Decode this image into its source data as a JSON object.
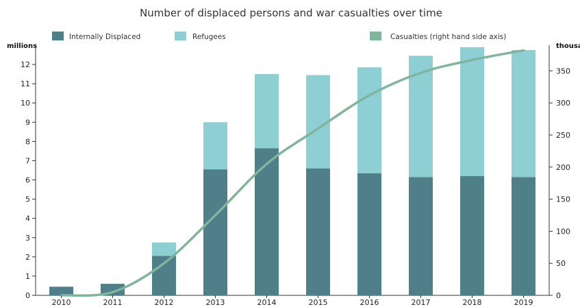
{
  "chart_data": {
    "type": "bar",
    "title": "Number of displaced persons and war casualties over time",
    "left_axis_unit": "millions",
    "right_axis_unit": "thousands",
    "categories": [
      "2010",
      "2011",
      "2012",
      "2013",
      "2014",
      "2015",
      "2016",
      "2017",
      "2018",
      "2019"
    ],
    "series": [
      {
        "name": "Internally Displaced",
        "kind": "bar",
        "stack": "main",
        "axis": "left",
        "color": "#4f7f89",
        "values": [
          0.45,
          0.6,
          2.05,
          6.55,
          7.65,
          6.6,
          6.35,
          6.15,
          6.2,
          6.15
        ]
      },
      {
        "name": "Refugees",
        "kind": "bar",
        "stack": "main",
        "axis": "left",
        "color": "#8ecfd3",
        "values": [
          0,
          0,
          0.7,
          2.45,
          3.85,
          4.85,
          5.5,
          6.3,
          6.7,
          6.6
        ]
      },
      {
        "name": "Casualties (right hand side axis)",
        "kind": "line",
        "axis": "right",
        "color": "#7fb59c",
        "values": [
          0,
          5,
          50,
          125,
          205,
          260,
          312,
          347,
          367,
          382
        ]
      }
    ],
    "ylim_left": [
      0,
      13
    ],
    "yticks_left": [
      0,
      1,
      2,
      3,
      4,
      5,
      6,
      7,
      8,
      9,
      10,
      11,
      12
    ],
    "ylim_right": [
      0,
      390
    ],
    "yticks_right": [
      0,
      50,
      100,
      150,
      200,
      250,
      300,
      350
    ],
    "grid": false,
    "legend_position": "top"
  }
}
